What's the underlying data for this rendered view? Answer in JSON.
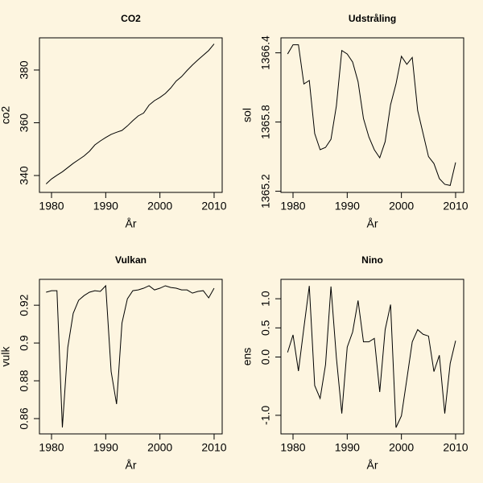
{
  "chart_data": [
    {
      "type": "line",
      "title": "CO2",
      "xlabel": "År",
      "ylabel": "co2",
      "x": [
        1979,
        1980,
        1981,
        1982,
        1983,
        1984,
        1985,
        1986,
        1987,
        1988,
        1989,
        1990,
        1991,
        1992,
        1993,
        1994,
        1995,
        1996,
        1997,
        1998,
        1999,
        2000,
        2001,
        2002,
        2003,
        2004,
        2005,
        2006,
        2007,
        2008,
        2009,
        2010
      ],
      "values": [
        336.8,
        338.7,
        340.1,
        341.4,
        343.0,
        344.6,
        346.0,
        347.4,
        349.2,
        351.6,
        353.1,
        354.4,
        355.6,
        356.4,
        357.1,
        358.8,
        360.8,
        362.6,
        363.7,
        366.7,
        368.4,
        369.6,
        371.1,
        373.2,
        375.8,
        377.5,
        379.8,
        381.9,
        383.8,
        385.6,
        387.4,
        389.9
      ],
      "color": "#000000",
      "xlim": [
        1977.77,
        2011.49
      ],
      "ylim": [
        333.6,
        392.2
      ],
      "xticks": [
        1980,
        1990,
        2000,
        2010
      ],
      "yticks": [
        340,
        360,
        380
      ]
    },
    {
      "type": "line",
      "title": "Udstråling",
      "xlabel": "År",
      "ylabel": "sol",
      "x": [
        1979,
        1980,
        1981,
        1982,
        1983,
        1984,
        1985,
        1986,
        1987,
        1988,
        1989,
        1990,
        1991,
        1992,
        1993,
        1994,
        1995,
        1996,
        1997,
        1998,
        1999,
        2000,
        2001,
        2002,
        2003,
        2004,
        2005,
        2006,
        2007,
        2008,
        2009,
        2010
      ],
      "values": [
        1366.39,
        1366.47,
        1366.47,
        1366.13,
        1366.16,
        1365.7,
        1365.56,
        1365.58,
        1365.65,
        1365.94,
        1366.42,
        1366.39,
        1366.32,
        1366.15,
        1365.83,
        1365.67,
        1365.56,
        1365.49,
        1365.63,
        1365.95,
        1366.13,
        1366.37,
        1366.3,
        1366.36,
        1365.9,
        1365.7,
        1365.5,
        1365.44,
        1365.31,
        1365.26,
        1365.25,
        1365.45
      ],
      "color": "#000000",
      "xlim": [
        1977.77,
        2011.49
      ],
      "ylim": [
        1365.19,
        1366.53
      ],
      "xticks": [
        1980,
        1990,
        2000,
        2010
      ],
      "yticks": [
        1365.2,
        1365.8,
        1366.4
      ]
    },
    {
      "type": "line",
      "title": "Vulkan",
      "xlabel": "År",
      "ylabel": "vulk",
      "x": [
        1979,
        1980,
        1981,
        1982,
        1983,
        1984,
        1985,
        1986,
        1987,
        1988,
        1989,
        1990,
        1991,
        1992,
        1993,
        1994,
        1995,
        1996,
        1997,
        1998,
        1999,
        2000,
        2001,
        2002,
        2003,
        2004,
        2005,
        2006,
        2007,
        2008,
        2009,
        2010
      ],
      "values": [
        0.9269,
        0.9277,
        0.9277,
        0.8553,
        0.8977,
        0.9157,
        0.9226,
        0.9251,
        0.9269,
        0.9277,
        0.9273,
        0.9303,
        0.8849,
        0.8677,
        0.9106,
        0.9234,
        0.9277,
        0.9281,
        0.929,
        0.9303,
        0.9281,
        0.929,
        0.9303,
        0.9294,
        0.929,
        0.9281,
        0.9281,
        0.9264,
        0.9273,
        0.9277,
        0.9239,
        0.929
      ],
      "color": "#000000",
      "xlim": [
        1977.77,
        2011.49
      ],
      "ylim": [
        0.8519,
        0.9337
      ],
      "xticks": [
        1980,
        1990,
        2000,
        2010
      ],
      "yticks": [
        0.86,
        0.88,
        0.9,
        0.92
      ]
    },
    {
      "type": "line",
      "title": "Nino",
      "xlabel": "År",
      "ylabel": "ens",
      "x": [
        1979,
        1980,
        1981,
        1982,
        1983,
        1984,
        1985,
        1986,
        1987,
        1988,
        1989,
        1990,
        1991,
        1992,
        1993,
        1994,
        1995,
        1996,
        1997,
        1998,
        1999,
        2000,
        2001,
        2002,
        2003,
        2004,
        2005,
        2006,
        2007,
        2008,
        2009,
        2010
      ],
      "values": [
        0.08,
        0.38,
        -0.24,
        0.5,
        1.22,
        -0.49,
        -0.71,
        -0.13,
        1.21,
        -0.01,
        -0.97,
        0.17,
        0.43,
        0.97,
        0.26,
        0.26,
        0.32,
        -0.6,
        0.47,
        0.9,
        -1.21,
        -1.01,
        -0.38,
        0.26,
        0.47,
        0.39,
        0.36,
        -0.25,
        0.03,
        -0.97,
        -0.11,
        0.28
      ],
      "color": "#000000",
      "xlim": [
        1977.77,
        2011.49
      ],
      "ylim": [
        -1.319,
        1.333
      ],
      "xticks": [
        1980,
        1990,
        2000,
        2010
      ],
      "yticks": [
        {
          "value": -1,
          "label": "-1.0"
        },
        {
          "value": 0,
          "label": "0.0"
        },
        {
          "value": 0.5,
          "label": "0.5"
        },
        {
          "value": 1,
          "label": "1.0"
        }
      ]
    }
  ]
}
